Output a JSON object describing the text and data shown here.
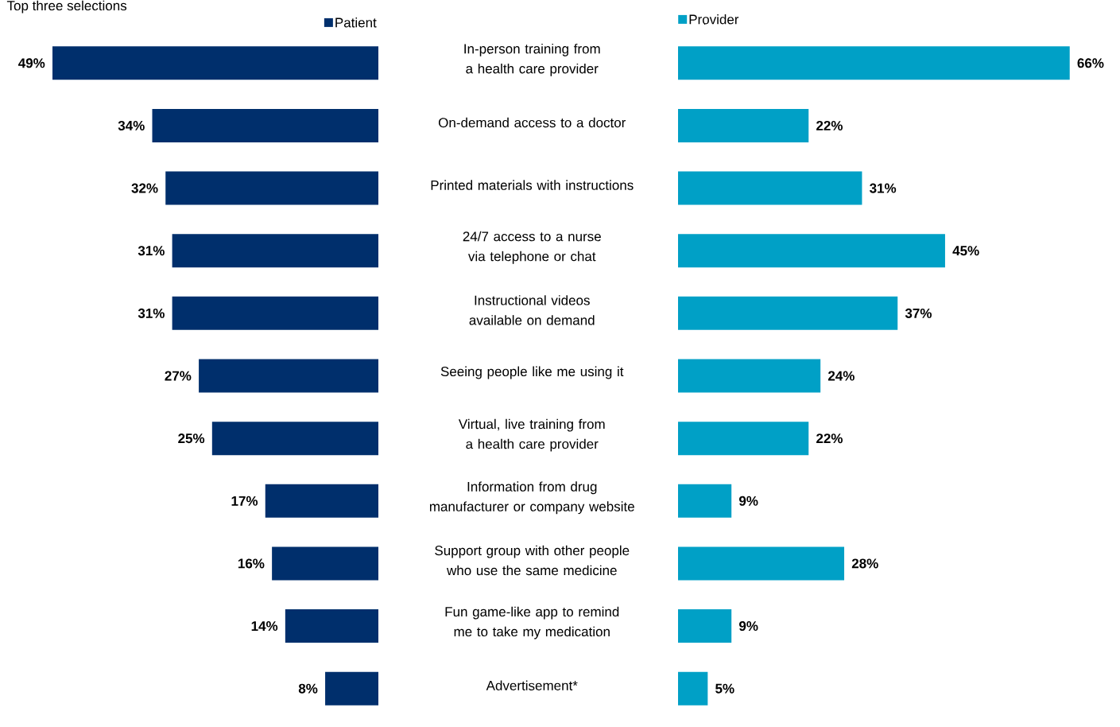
{
  "chart_data": [
    {
      "type": "bar",
      "orientation": "horizontal",
      "title": "Top three selections",
      "categories": [
        "In-person training from a health care provider",
        "On-demand access to a doctor",
        "Printed materials with instructions",
        "24/7 access to a nurse via telephone or chat",
        "Instructional videos available on demand",
        "Seeing people like me using it",
        "Virtual, live training from a health care provider",
        "Information from drug manufacturer or company website",
        "Support group with other people who use the same medicine",
        "Fun game-like app to remind me to take my medication",
        "Advertisement*"
      ],
      "series": [
        {
          "name": "Patient",
          "color": "#002f6c",
          "values": [
            49,
            34,
            32,
            31,
            31,
            27,
            25,
            17,
            16,
            14,
            8
          ],
          "value_labels": [
            "49%",
            "34%",
            "32%",
            "31%",
            "31%",
            "27%",
            "25%",
            "17%",
            "16%",
            "14%",
            "8%"
          ]
        }
      ],
      "tick_labels": "y",
      "legend": "top right"
    },
    {
      "type": "bar",
      "orientation": "horizontal",
      "categories": [
        null,
        null,
        null,
        null,
        null,
        null,
        null,
        null,
        null,
        null,
        null
      ],
      "series": [
        {
          "name": "Provider",
          "color": "#00a0c6",
          "values": [
            66,
            22,
            31,
            45,
            37,
            24,
            22,
            9,
            28,
            9,
            5
          ],
          "value_labels": [
            "66%",
            "22%",
            "31%",
            "45%",
            "37%",
            "24%",
            "22%",
            "9%",
            "28%",
            "9%",
            "5%"
          ]
        }
      ],
      "tick_labels": false,
      "legend": "top left"
    }
  ]
}
